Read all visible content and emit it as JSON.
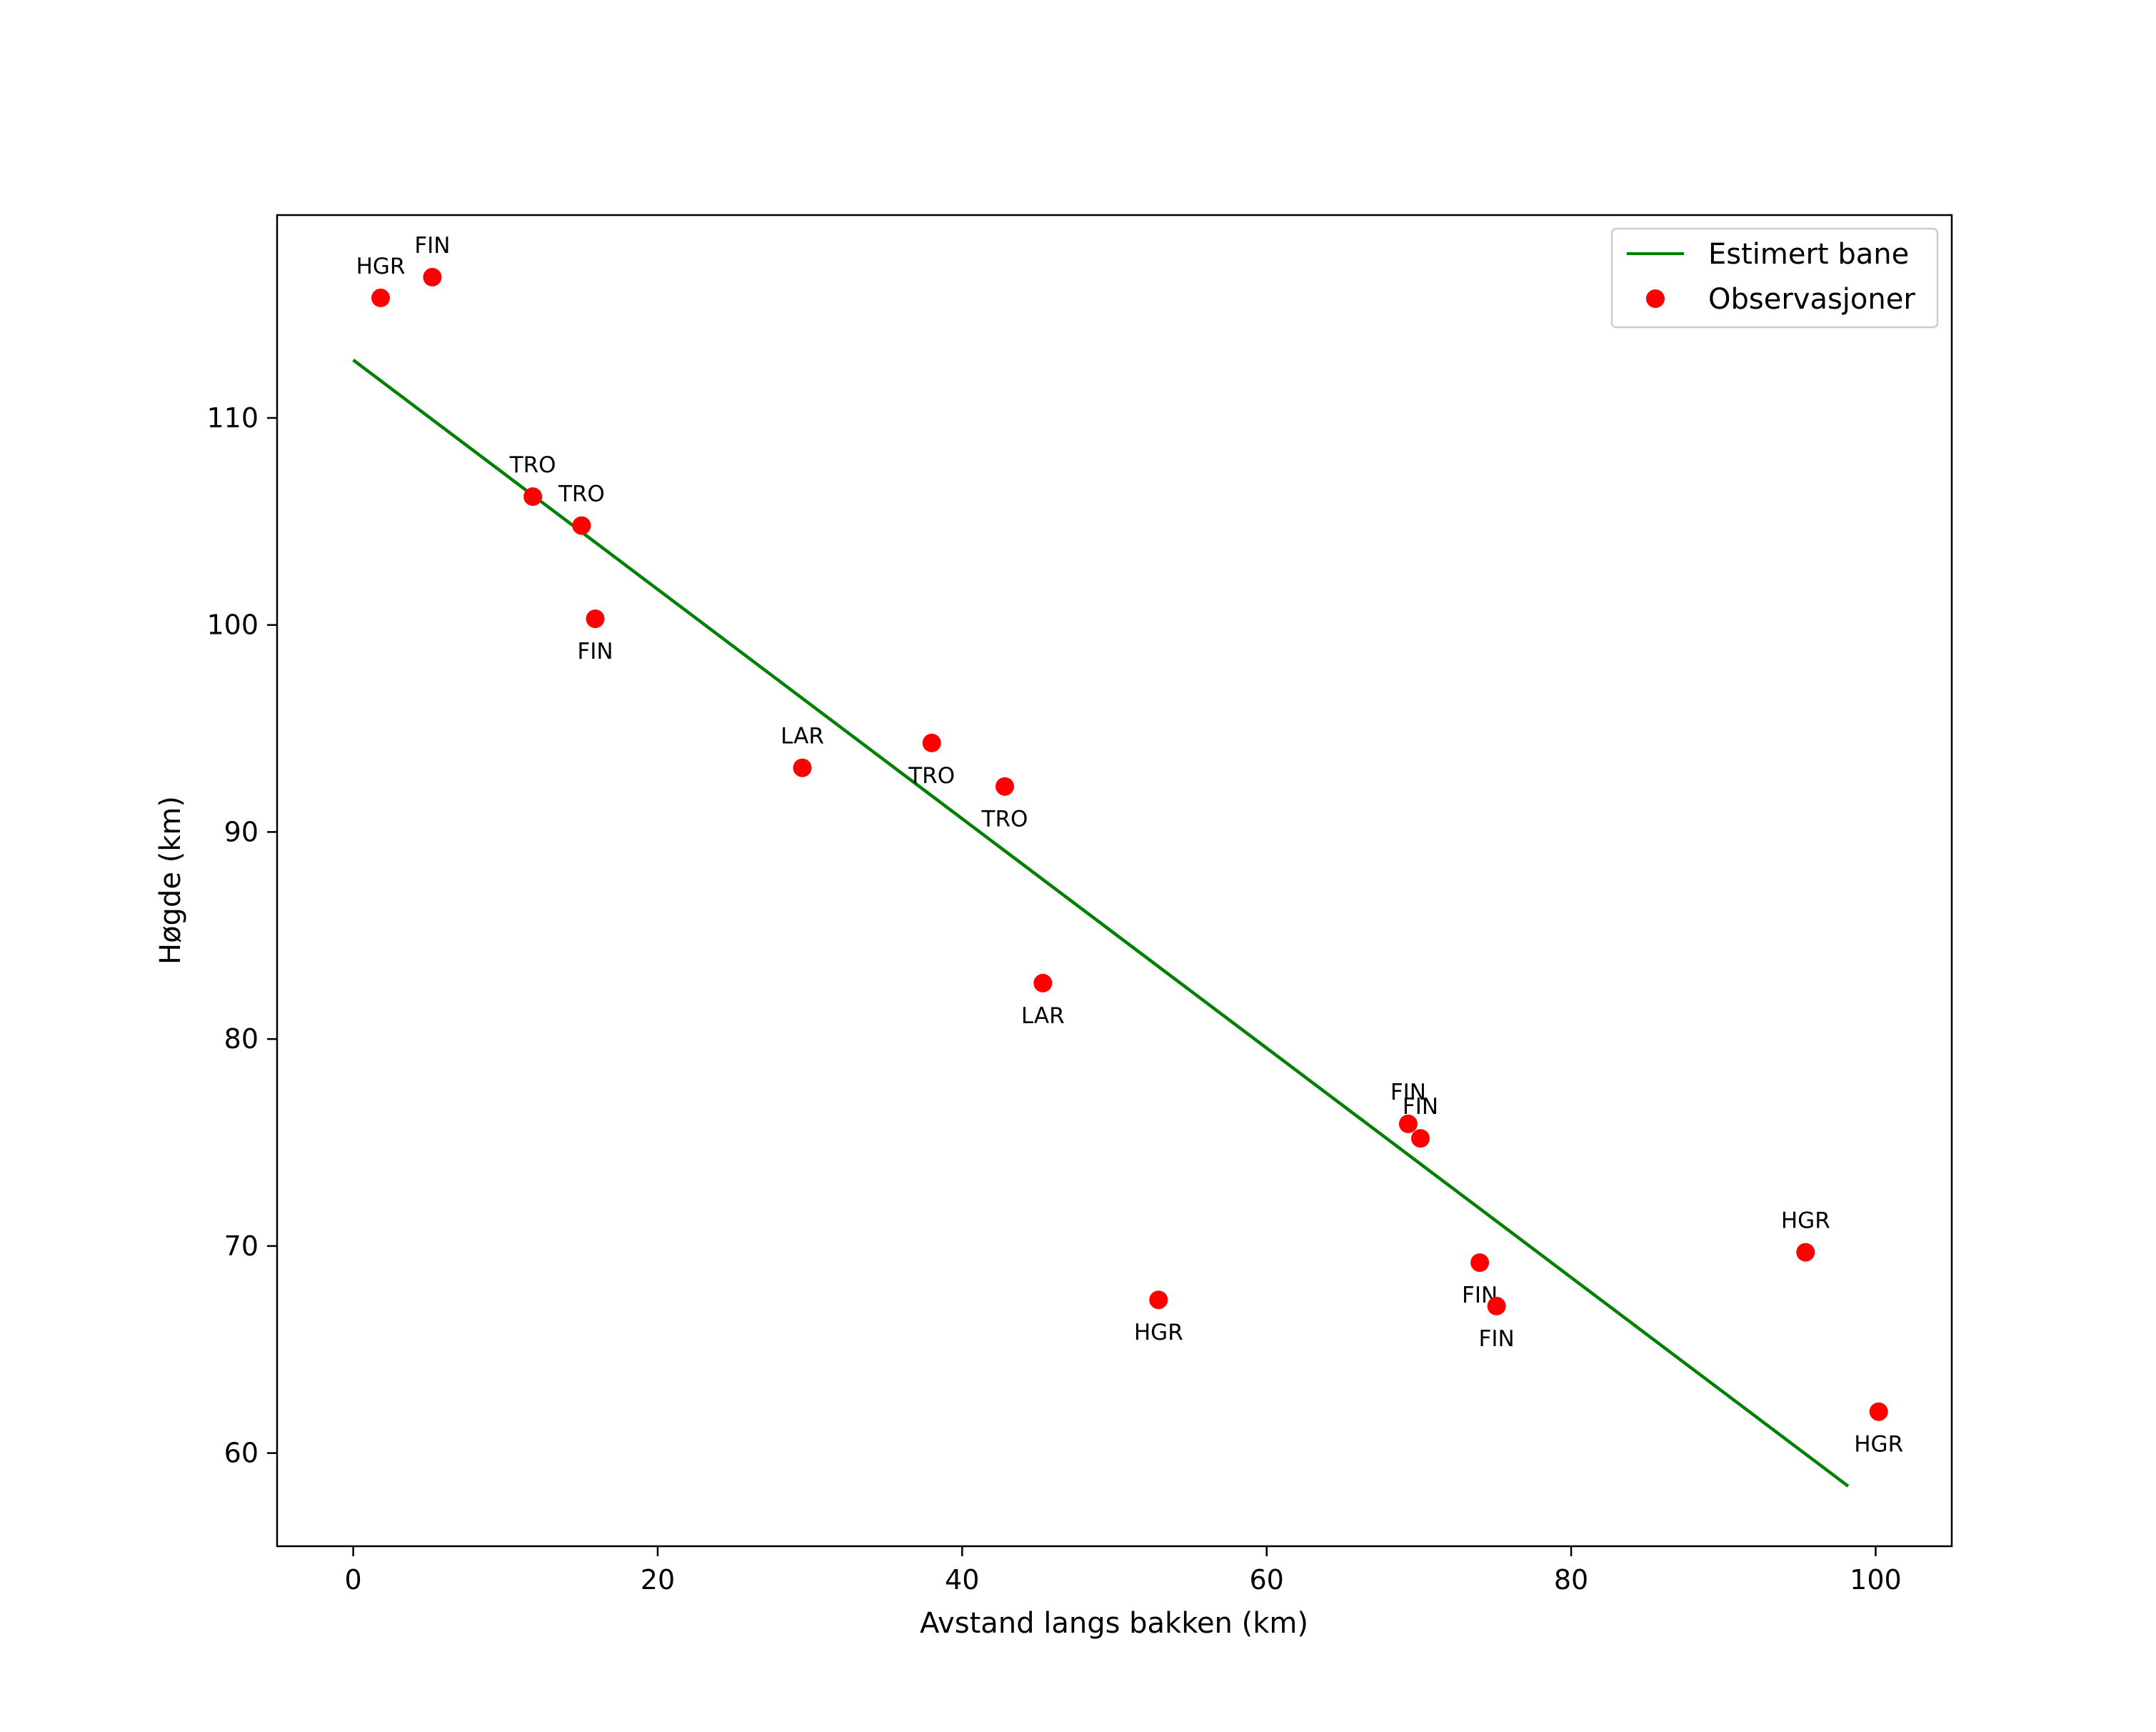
{
  "chart_data": {
    "type": "scatter",
    "title": "",
    "xlabel": "Avstand langs bakken (km)",
    "ylabel": "Høgde (km)",
    "xlim": [
      -5,
      105
    ],
    "ylim": [
      55.5,
      119.8
    ],
    "xticks": [
      0,
      20,
      40,
      60,
      80,
      100
    ],
    "yticks": [
      60,
      70,
      80,
      90,
      100,
      110
    ],
    "grid": false,
    "legend_position": "top-right",
    "colors": {
      "line": "#008000",
      "points": "#ff0000",
      "axes": "#000000",
      "legend_border": "#cccccc"
    },
    "series": [
      {
        "name": "Estimert bane",
        "kind": "line",
        "x": [
          0,
          98.2
        ],
        "y": [
          112.8,
          58.4
        ]
      },
      {
        "name": "Observasjoner",
        "kind": "scatter",
        "points": [
          {
            "x": 1.8,
            "y": 115.8,
            "label": "HGR",
            "label_pos": "above"
          },
          {
            "x": 5.2,
            "y": 116.8,
            "label": "FIN",
            "label_pos": "above"
          },
          {
            "x": 11.8,
            "y": 106.2,
            "label": "TRO",
            "label_pos": "above"
          },
          {
            "x": 15.0,
            "y": 104.8,
            "label": "TRO",
            "label_pos": "above"
          },
          {
            "x": 15.9,
            "y": 100.3,
            "label": "FIN",
            "label_pos": "below"
          },
          {
            "x": 29.5,
            "y": 93.1,
            "label": "LAR",
            "label_pos": "above"
          },
          {
            "x": 38.0,
            "y": 94.3,
            "label": "TRO",
            "label_pos": "below"
          },
          {
            "x": 42.8,
            "y": 92.2,
            "label": "TRO",
            "label_pos": "below"
          },
          {
            "x": 45.3,
            "y": 82.7,
            "label": "LAR",
            "label_pos": "below"
          },
          {
            "x": 52.9,
            "y": 67.4,
            "label": "HGR",
            "label_pos": "below"
          },
          {
            "x": 69.3,
            "y": 75.9,
            "label": "FIN",
            "label_pos": "above"
          },
          {
            "x": 70.1,
            "y": 75.2,
            "label": "FIN",
            "label_pos": "above"
          },
          {
            "x": 74.0,
            "y": 69.2,
            "label": "FIN",
            "label_pos": "below"
          },
          {
            "x": 75.1,
            "y": 67.1,
            "label": "FIN",
            "label_pos": "below"
          },
          {
            "x": 95.4,
            "y": 69.7,
            "label": "HGR",
            "label_pos": "above"
          },
          {
            "x": 100.2,
            "y": 62.0,
            "label": "HGR",
            "label_pos": "below"
          }
        ]
      }
    ]
  }
}
